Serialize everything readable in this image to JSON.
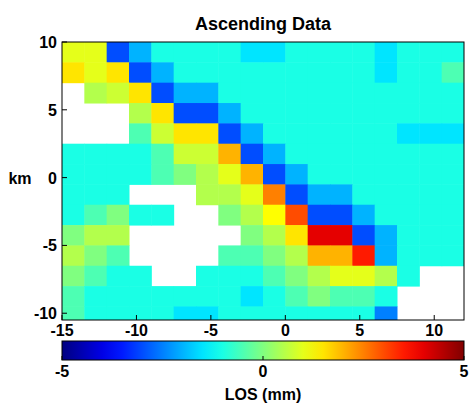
{
  "chart_data": {
    "type": "heatmap",
    "title": "Ascending Data",
    "y_label": "km",
    "x": [
      -14.25,
      -12.75,
      -11.25,
      -9.75,
      -8.25,
      -6.75,
      -5.25,
      -3.75,
      -2.25,
      -0.75,
      0.75,
      2.25,
      3.75,
      5.25,
      6.75,
      8.25,
      9.75,
      11.25
    ],
    "y": [
      9.25,
      7.75,
      6.25,
      4.75,
      3.25,
      1.75,
      0.25,
      -1.25,
      -2.75,
      -4.25,
      -5.75,
      -7.25,
      -8.75,
      -10.25
    ],
    "cells": [
      [
        1,
        1,
        -3,
        -2,
        -1,
        -1,
        -1,
        -1,
        -1.5,
        -1.5,
        -1,
        -1,
        -1,
        -1,
        -1.5,
        -1,
        -1,
        -1
      ],
      [
        1.5,
        1,
        1.5,
        -3,
        -2,
        -1,
        -1,
        -1,
        -1,
        -1,
        -1,
        -1,
        -1,
        -1,
        -1.5,
        -1,
        -1,
        -0.5
      ],
      [
        null,
        0.5,
        0.75,
        1.5,
        -3,
        -2,
        -2,
        -1,
        -1,
        -1,
        -1,
        -1,
        -1,
        -1,
        -1,
        -1,
        -1,
        -1
      ],
      [
        null,
        null,
        null,
        0.5,
        1.5,
        -3,
        -3,
        -2,
        -1,
        -1,
        -1,
        -1,
        -1,
        -1,
        -1,
        -1,
        -1,
        -1
      ],
      [
        null,
        null,
        null,
        -0.5,
        0.75,
        1.5,
        1.5,
        -3,
        -2,
        -1,
        -1,
        -1,
        -1,
        -1,
        -1,
        -1.5,
        -1.5,
        -1.5
      ],
      [
        -1,
        -1,
        -1,
        -1,
        -0.5,
        0.75,
        0.75,
        2,
        -3,
        -2,
        -1,
        -1,
        -1,
        -1,
        -1,
        -1,
        -1,
        -1
      ],
      [
        -1,
        -1,
        -1,
        -1,
        -0.5,
        0,
        0.5,
        1,
        2,
        -3,
        -2,
        -1,
        -1,
        -1,
        -1,
        -1,
        -1,
        -1
      ],
      [
        -1,
        -1,
        -1,
        null,
        null,
        null,
        0.5,
        0.5,
        1,
        2.5,
        -3,
        -2,
        -2,
        -1,
        -1,
        -1,
        -1,
        -1
      ],
      [
        -1,
        -0.5,
        0,
        -1,
        -1,
        null,
        null,
        0,
        0.5,
        1.25,
        3,
        -3,
        -3,
        -2,
        -1,
        -1,
        -1,
        -1
      ],
      [
        0,
        0.5,
        0.5,
        null,
        null,
        null,
        null,
        null,
        0,
        0.5,
        1.5,
        4,
        4,
        -3,
        -2,
        -1,
        -1,
        -1
      ],
      [
        0.5,
        0,
        -0.5,
        null,
        null,
        null,
        null,
        -0.5,
        -0.5,
        0,
        0.5,
        2,
        2,
        3.5,
        -2,
        -1,
        -1,
        -1
      ],
      [
        0,
        -0.5,
        -1,
        -1,
        null,
        null,
        -1,
        -1,
        -1,
        -0.5,
        0,
        0.5,
        1,
        1,
        0.5,
        -1,
        null,
        null
      ],
      [
        -0.5,
        -1,
        -1,
        -1,
        -1,
        -1,
        -1,
        -1,
        -1.5,
        -1,
        -0.5,
        0,
        -0.5,
        -0.5,
        -1,
        null,
        null,
        null
      ],
      [
        -0.5,
        -1,
        -1,
        -1,
        -1,
        -1.5,
        -1.5,
        -1,
        -1,
        -1,
        -1,
        -1,
        -1,
        -1,
        -2.5,
        null,
        null,
        null
      ]
    ],
    "xlim": [
      -15,
      12
    ],
    "ylim": [
      -10.5,
      10
    ],
    "xticks": [
      -15,
      -10,
      -5,
      0,
      5,
      10
    ],
    "yticks": [
      -10,
      -5,
      0,
      5,
      10
    ],
    "colorbar": {
      "label": "LOS (mm)",
      "range": [
        -5,
        5
      ],
      "ticks": [
        -5,
        0,
        5
      ]
    }
  }
}
